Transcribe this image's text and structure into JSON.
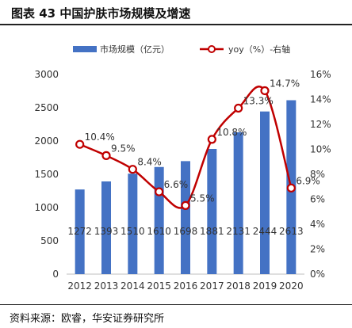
{
  "figure": {
    "title": "图表 43  中国护肤市场规模及增速",
    "source": "资料来源：欧睿，华安证券研究所"
  },
  "chart_data": {
    "type": "bar",
    "categories": [
      "2012",
      "2013",
      "2014",
      "2015",
      "2016",
      "2017",
      "2018",
      "2019",
      "2020"
    ],
    "series": [
      {
        "name": "市场规模（亿元）",
        "type": "bar",
        "axis": "left",
        "color": "#4472C4",
        "values": [
          1272,
          1393,
          1510,
          1610,
          1698,
          1881,
          2131,
          2444,
          2613
        ],
        "labels": [
          "1272",
          "1393",
          "1510",
          "1610",
          "1698",
          "1881",
          "2131",
          "2444",
          "2613"
        ]
      },
      {
        "name": "yoy（%）-右轴",
        "type": "line",
        "axis": "right",
        "color": "#C00000",
        "values": [
          10.4,
          9.5,
          8.4,
          6.6,
          5.5,
          10.8,
          13.3,
          14.7,
          6.9
        ],
        "labels": [
          "10.4%",
          "9.5%",
          "8.4%",
          "6.6%",
          "5.5%",
          "10.8%",
          "13.3%",
          "14.7%",
          "6.9%"
        ]
      }
    ],
    "y_left": {
      "min": 0,
      "max": 3000,
      "ticks": [
        "0",
        "500",
        "1000",
        "1500",
        "2000",
        "2500",
        "3000"
      ]
    },
    "y_right": {
      "min": 0,
      "max": 16,
      "ticks": [
        "0%",
        "2%",
        "4%",
        "6%",
        "8%",
        "10%",
        "12%",
        "14%",
        "16%"
      ]
    },
    "grid": false,
    "legend_position": "top"
  }
}
